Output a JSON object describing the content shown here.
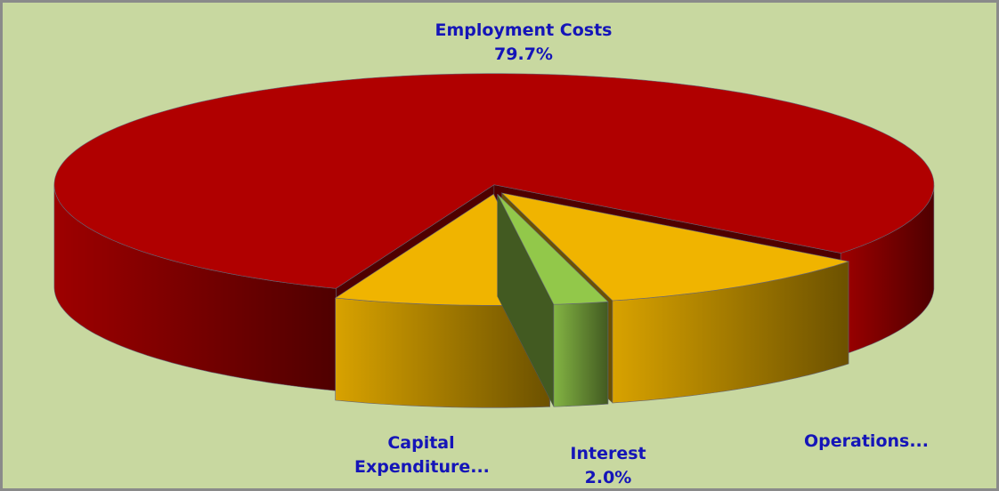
{
  "chart_data": {
    "type": "pie",
    "categories": [
      "Employment Costs",
      "Capital Expenditure...",
      "Interest",
      "Operations..."
    ],
    "values": [
      79.7,
      7.9,
      2.0,
      10.4
    ],
    "value_labels": [
      "79.7%",
      null,
      "2.0%",
      null
    ],
    "colors": [
      "#b00000",
      "#f0b400",
      "#92c84a",
      "#f0b400"
    ]
  }
}
